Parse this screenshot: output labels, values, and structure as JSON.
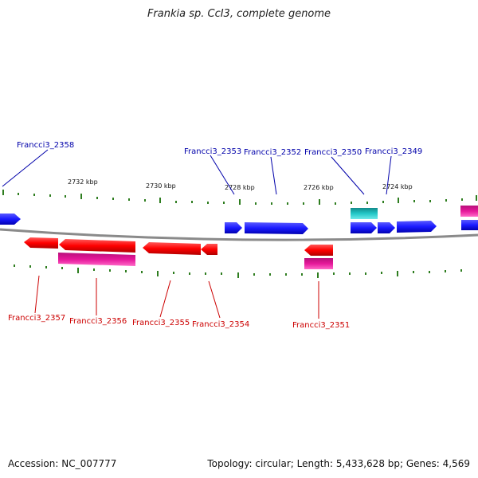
{
  "title": "Frankia sp. CcI3, complete genome",
  "footer": {
    "accession": "Accession: NC_007777",
    "summary": "Topology: circular; Length: 5,433,628 bp; Genes: 4,569"
  },
  "colors": {
    "forward_gene": "#1a1aff",
    "reverse_gene": "#ff0000",
    "cds_magenta": "#e6179a",
    "cyan_feature": "#22c7c7",
    "backbone": "#808080",
    "tick": "#2e7d1f",
    "label_forward": "#0000aa",
    "label_reverse": "#cc0000"
  },
  "scale": {
    "ticks": [
      "2732 kbp",
      "2730 kbp",
      "2728 kbp",
      "2726 kbp",
      "2724 kbp"
    ]
  },
  "forward_labels": [
    "Francci3_2358",
    "Francci3_2353",
    "Francci3_2352",
    "Francci3_2350",
    "Francci3_2349"
  ],
  "reverse_labels": [
    "Francci3_2357",
    "Francci3_2356",
    "Francci3_2355",
    "Francci3_2354",
    "Francci3_2351"
  ]
}
